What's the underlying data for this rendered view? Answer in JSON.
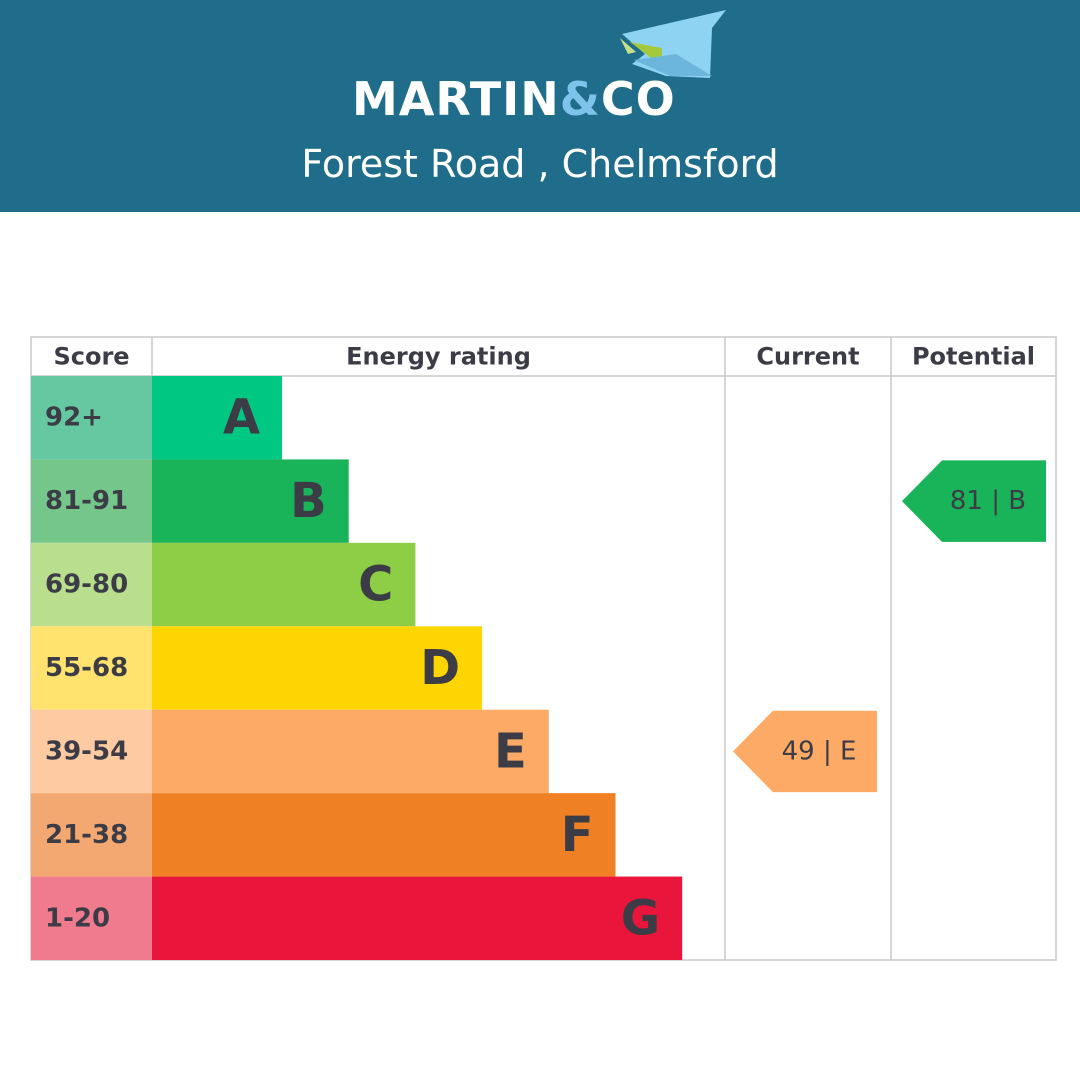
{
  "header": {
    "brand_name": "MARTIN",
    "brand_amp": "&",
    "brand_suffix": "CO",
    "subtitle": "Forest Road , Chelmsford",
    "background_color": "#1f6d8a",
    "logo_icon": "house-roof-icon"
  },
  "chart_data": {
    "type": "table",
    "columns": [
      "Score",
      "Energy rating",
      "Current",
      "Potential"
    ],
    "bands": [
      {
        "score": "92+",
        "rating": "A",
        "color": "#00c781",
        "score_color": "#66c8a1"
      },
      {
        "score": "81-91",
        "rating": "B",
        "color": "#19b459",
        "score_color": "#75c68b"
      },
      {
        "score": "69-80",
        "rating": "C",
        "color": "#8dce46",
        "score_color": "#b8de8e"
      },
      {
        "score": "55-68",
        "rating": "D",
        "color": "#ffd500",
        "score_color": "#ffe36e"
      },
      {
        "score": "39-54",
        "rating": "E",
        "color": "#fcaa65",
        "score_color": "#fdcaa1"
      },
      {
        "score": "21-38",
        "rating": "F",
        "color": "#ef8023",
        "score_color": "#f2a870"
      },
      {
        "score": "1-20",
        "rating": "G",
        "color": "#e9153b",
        "score_color": "#f07a8e"
      }
    ],
    "current": {
      "value": 49,
      "rating": "E",
      "label": "49 | E",
      "color": "#fcaa65"
    },
    "potential": {
      "value": 81,
      "rating": "B",
      "label": "81 | B",
      "color": "#19b459"
    }
  }
}
